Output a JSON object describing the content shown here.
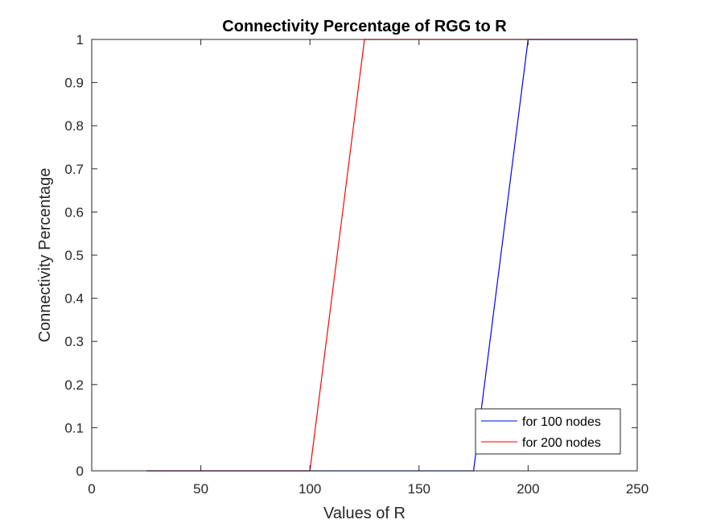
{
  "chart_data": {
    "type": "line",
    "title": "Connectivity Percentage of RGG to R",
    "xlabel": "Values of R",
    "ylabel": "Connectivity Percentage",
    "xlim": [
      0,
      250
    ],
    "ylim": [
      0,
      1
    ],
    "xticks": [
      0,
      50,
      100,
      150,
      200,
      250
    ],
    "xtick_labels": [
      "0",
      "50",
      "100",
      "150",
      "200",
      "250"
    ],
    "yticks": [
      0,
      0.1,
      0.2,
      0.3,
      0.4,
      0.5,
      0.6,
      0.7,
      0.8,
      0.9,
      1
    ],
    "ytick_labels": [
      "0",
      "0.1",
      "0.2",
      "0.3",
      "0.4",
      "0.5",
      "0.6",
      "0.7",
      "0.8",
      "0.9",
      "1"
    ],
    "grid": false,
    "legend_position": "bottom-right",
    "series": [
      {
        "name": "for 100 nodes",
        "color": "#0000ff",
        "x": [
          25,
          50,
          75,
          100,
          125,
          150,
          175,
          200,
          225,
          250
        ],
        "y": [
          0,
          0,
          0,
          0,
          0,
          0,
          0,
          1,
          1,
          1
        ]
      },
      {
        "name": "for 200 nodes",
        "color": "#ff0000",
        "x": [
          25,
          50,
          75,
          100,
          125,
          150,
          175,
          200,
          225,
          250
        ],
        "y": [
          0,
          0,
          0,
          0,
          1,
          1,
          1,
          1,
          1,
          1
        ]
      }
    ]
  }
}
